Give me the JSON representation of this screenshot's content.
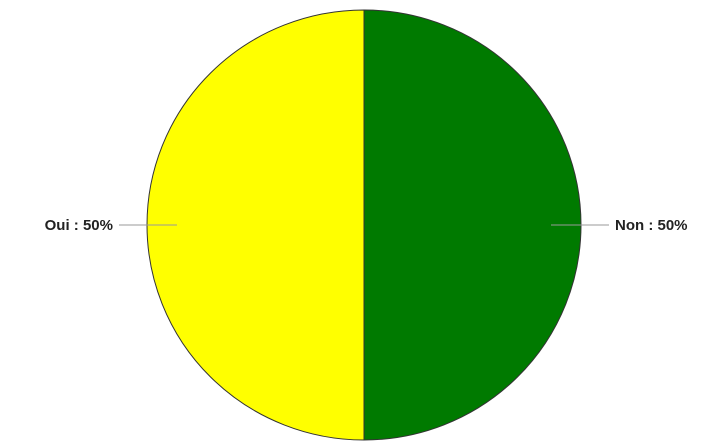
{
  "chart_data": {
    "type": "pie",
    "title": "",
    "slices": [
      {
        "label": "Non",
        "value": 50,
        "percent_text": "Non : 50%",
        "color": "#007A00"
      },
      {
        "label": "Oui",
        "value": 50,
        "percent_text": "Oui : 50%",
        "color": "#FFFF00"
      }
    ],
    "start_angle_deg": 0,
    "direction": "clockwise",
    "legend": "none",
    "slice_outline_color": "#333333",
    "leader_line_color": "#999999"
  }
}
